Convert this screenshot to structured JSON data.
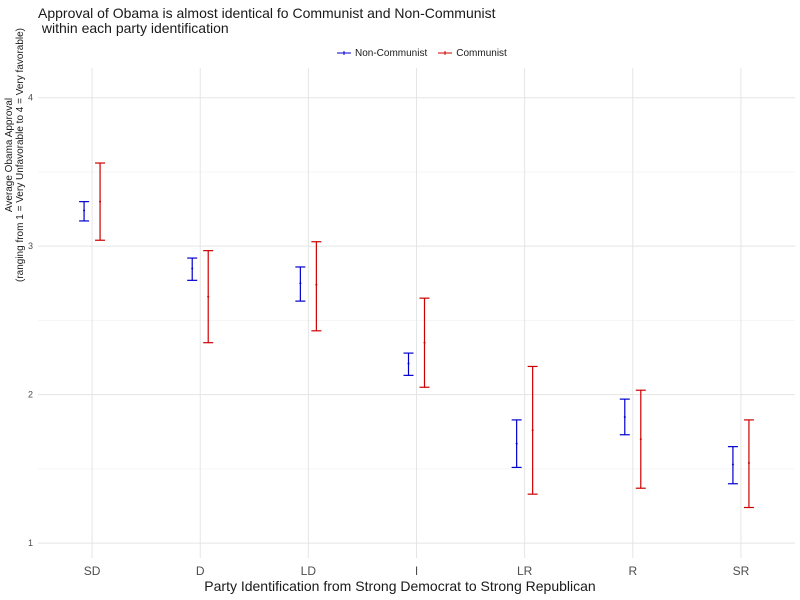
{
  "chart_data": {
    "type": "errorbar",
    "title_line1": "Approval of Obama is almost identical fo Communist and Non-Communist",
    "title_line2": " within each party identification",
    "xlabel": "Party Identification from Strong Democrat to Strong Republican",
    "ylabel_line1": "Average Obama Approval",
    "ylabel_line2": "(ranging from 1 = Very Unfavorable to 4 = Very favorable)",
    "categories": [
      "SD",
      "D",
      "LD",
      "I",
      "LR",
      "R",
      "SR"
    ],
    "ylim": [
      0.9,
      4.2
    ],
    "yticks": [
      1,
      2,
      3,
      4
    ],
    "grid": true,
    "legend_position": "top",
    "series": [
      {
        "name": "Non-Communist",
        "color": "#0000cc",
        "mean": [
          3.24,
          2.85,
          2.75,
          2.21,
          1.67,
          1.85,
          1.53
        ],
        "lower": [
          3.17,
          2.77,
          2.63,
          2.13,
          1.51,
          1.73,
          1.4
        ],
        "upper": [
          3.3,
          2.92,
          2.86,
          2.28,
          1.83,
          1.97,
          1.65
        ]
      },
      {
        "name": "Communist",
        "color": "#cc0000",
        "mean": [
          3.3,
          2.66,
          2.74,
          2.35,
          1.76,
          1.7,
          1.54
        ],
        "lower": [
          3.04,
          2.35,
          2.43,
          2.05,
          1.33,
          1.37,
          1.24
        ],
        "upper": [
          3.56,
          2.97,
          3.03,
          2.65,
          2.19,
          2.03,
          1.83
        ]
      }
    ]
  }
}
